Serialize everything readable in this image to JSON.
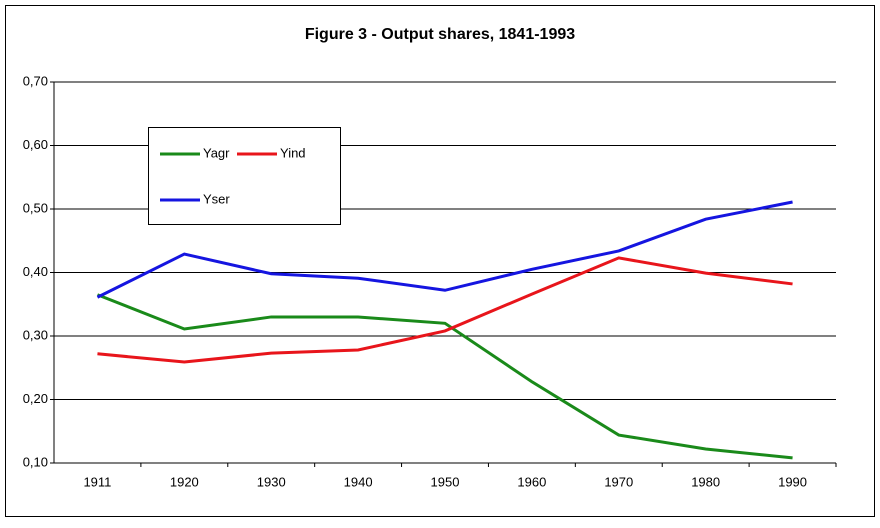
{
  "chart_data": {
    "type": "line",
    "title": "Figure 3 - Output shares, 1841-1993",
    "categories": [
      "1911",
      "1920",
      "1930",
      "1940",
      "1950",
      "1960",
      "1970",
      "1980",
      "1990"
    ],
    "series": [
      {
        "name": "Yagr",
        "color": "#1a8a1a",
        "values": [
          0.365,
          0.311,
          0.33,
          0.33,
          0.32,
          0.228,
          0.144,
          0.122,
          0.108
        ]
      },
      {
        "name": "Yind",
        "color": "#e8151b",
        "values": [
          0.272,
          0.259,
          0.273,
          0.278,
          0.308,
          0.366,
          0.423,
          0.399,
          0.382
        ]
      },
      {
        "name": "Yser",
        "color": "#1515e0",
        "values": [
          0.361,
          0.429,
          0.398,
          0.391,
          0.372,
          0.405,
          0.434,
          0.484,
          0.511
        ]
      }
    ],
    "ylim": [
      0.1,
      0.7
    ],
    "yticks": [
      {
        "value": 0.1,
        "label": "0,10"
      },
      {
        "value": 0.2,
        "label": "0,20"
      },
      {
        "value": 0.3,
        "label": "0,30"
      },
      {
        "value": 0.4,
        "label": "0,40"
      },
      {
        "value": 0.5,
        "label": "0,50"
      },
      {
        "value": 0.6,
        "label": "0,60"
      },
      {
        "value": 0.7,
        "label": "0,70"
      }
    ],
    "grid": true
  }
}
